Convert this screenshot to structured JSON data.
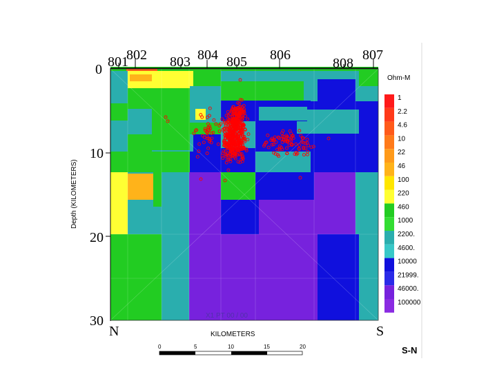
{
  "chart_data": {
    "type": "heatmap",
    "xlabel": "KILOMETERS",
    "ylabel": "Depth (KILOMETERS)",
    "ylim": [
      0,
      30
    ],
    "y_ticks": [
      "0",
      "10",
      "20",
      "30"
    ],
    "left_end_label": "N",
    "right_end_label": "S",
    "section_label": "S-N",
    "watermark": "X1 PT 00 / 00",
    "stations": [
      "801",
      "802",
      "803",
      "804",
      "805",
      "806",
      "808",
      "807"
    ],
    "legend": {
      "title": "Ohm-M",
      "levels": [
        "1",
        "2.2",
        "4.6",
        "10",
        "22",
        "46",
        "100",
        "220",
        "460",
        "1000",
        "2200.",
        "4600.",
        "10000",
        "21999.",
        "46000.",
        "100000"
      ],
      "colors": [
        "#ff1a1a",
        "#ff3a1a",
        "#ff5a1a",
        "#ff7a1a",
        "#ff9a1a",
        "#ffb31a",
        "#ffe600",
        "#ffff33",
        "#22cc22",
        "#33dd33",
        "#2aaeae",
        "#38c8c8",
        "#1010dd",
        "#2a2ae8",
        "#7722dd",
        "#8a2be2"
      ]
    },
    "scale_bar": {
      "ticks": [
        "0",
        "5",
        "10",
        "15",
        "20"
      ]
    },
    "earthquake_color": "#ff0000"
  }
}
